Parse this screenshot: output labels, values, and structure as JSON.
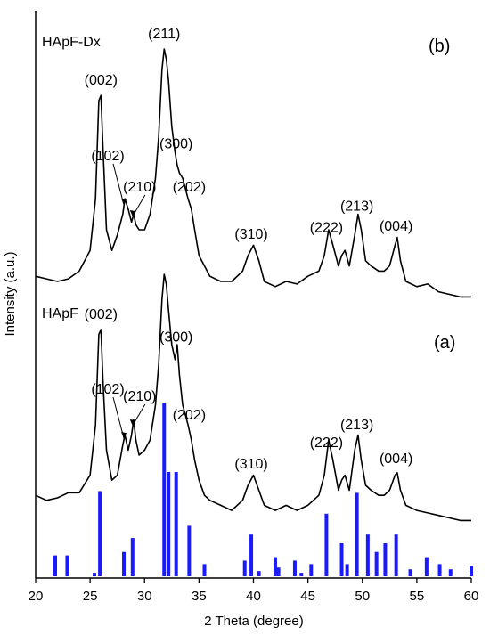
{
  "chart_data": {
    "type": "line",
    "xlabel": "2 Theta (degree)",
    "ylabel": "Intensity (a.u.)",
    "xlim": [
      20,
      60
    ],
    "x_ticks": [
      "20",
      "25",
      "30",
      "35",
      "40",
      "45",
      "50",
      "55",
      "60"
    ],
    "y_ticks_labeled": false,
    "legend": "none",
    "colors": {
      "pattern_line": "#000000",
      "reference_bars": "#1a1aff"
    },
    "series": [
      {
        "name": "HApF-Dx",
        "panel_label": "(b)",
        "x": [
          20.0,
          21.0,
          22.0,
          23.0,
          24.0,
          25.0,
          25.5,
          25.8,
          26.0,
          26.2,
          26.5,
          27.0,
          27.5,
          28.0,
          28.2,
          28.5,
          28.8,
          29.0,
          29.2,
          29.5,
          30.0,
          30.5,
          31.0,
          31.3,
          31.6,
          31.8,
          32.0,
          32.2,
          32.5,
          32.8,
          33.0,
          33.2,
          33.5,
          34.0,
          34.3,
          34.6,
          35.0,
          35.5,
          36.0,
          37.0,
          38.0,
          39.0,
          39.5,
          40.0,
          40.5,
          41.0,
          42.0,
          43.0,
          44.0,
          45.0,
          46.0,
          46.5,
          46.9,
          47.3,
          47.8,
          48.1,
          48.4,
          48.8,
          49.3,
          49.6,
          49.9,
          50.3,
          50.8,
          51.5,
          52.0,
          52.5,
          53.0,
          53.2,
          53.5,
          54.0,
          55.0,
          56.0,
          57.0,
          58.0,
          59.0,
          60.0
        ],
        "y": [
          0.12,
          0.11,
          0.1,
          0.11,
          0.14,
          0.22,
          0.42,
          0.8,
          0.82,
          0.6,
          0.3,
          0.22,
          0.28,
          0.36,
          0.42,
          0.38,
          0.33,
          0.36,
          0.32,
          0.3,
          0.3,
          0.36,
          0.5,
          0.66,
          0.92,
          1.0,
          0.96,
          0.88,
          0.7,
          0.6,
          0.55,
          0.52,
          0.5,
          0.42,
          0.38,
          0.3,
          0.2,
          0.16,
          0.12,
          0.1,
          0.1,
          0.14,
          0.2,
          0.24,
          0.18,
          0.1,
          0.08,
          0.1,
          0.09,
          0.12,
          0.14,
          0.2,
          0.3,
          0.24,
          0.16,
          0.2,
          0.22,
          0.16,
          0.28,
          0.36,
          0.3,
          0.18,
          0.16,
          0.14,
          0.14,
          0.16,
          0.24,
          0.27,
          0.18,
          0.1,
          0.08,
          0.09,
          0.06,
          0.05,
          0.04,
          0.04
        ]
      },
      {
        "name": "HApF",
        "panel_label": "(a)",
        "x": [
          20.0,
          21.0,
          22.0,
          23.0,
          24.0,
          25.0,
          25.5,
          25.8,
          26.0,
          26.2,
          26.5,
          27.0,
          27.5,
          28.0,
          28.2,
          28.5,
          28.8,
          29.0,
          29.2,
          29.5,
          30.0,
          30.5,
          31.0,
          31.3,
          31.6,
          31.8,
          32.0,
          32.2,
          32.5,
          32.8,
          33.0,
          33.2,
          33.5,
          34.0,
          34.3,
          34.6,
          35.0,
          35.5,
          36.0,
          37.0,
          38.0,
          39.0,
          39.5,
          40.0,
          40.5,
          41.0,
          42.0,
          43.0,
          44.0,
          45.0,
          46.0,
          46.5,
          46.9,
          47.3,
          47.8,
          48.1,
          48.4,
          48.8,
          49.3,
          49.6,
          49.9,
          50.3,
          50.8,
          51.5,
          52.0,
          52.5,
          53.0,
          53.2,
          53.5,
          54.0,
          55.0,
          56.0,
          57.0,
          58.0,
          59.0,
          60.0
        ],
        "y": [
          0.12,
          0.1,
          0.11,
          0.13,
          0.13,
          0.2,
          0.4,
          0.76,
          0.78,
          0.56,
          0.3,
          0.18,
          0.2,
          0.32,
          0.36,
          0.3,
          0.36,
          0.42,
          0.34,
          0.28,
          0.3,
          0.34,
          0.48,
          0.64,
          0.9,
          1.0,
          0.96,
          0.86,
          0.72,
          0.66,
          0.72,
          0.6,
          0.48,
          0.4,
          0.34,
          0.26,
          0.18,
          0.12,
          0.1,
          0.08,
          0.06,
          0.1,
          0.16,
          0.2,
          0.14,
          0.08,
          0.06,
          0.08,
          0.06,
          0.08,
          0.12,
          0.2,
          0.34,
          0.26,
          0.14,
          0.18,
          0.2,
          0.14,
          0.3,
          0.36,
          0.26,
          0.16,
          0.14,
          0.12,
          0.12,
          0.14,
          0.2,
          0.21,
          0.14,
          0.08,
          0.06,
          0.05,
          0.04,
          0.03,
          0.02,
          0.02
        ]
      }
    ],
    "reference_bars": {
      "x": [
        21.8,
        22.9,
        25.4,
        25.9,
        28.1,
        28.9,
        31.8,
        32.2,
        32.9,
        34.1,
        35.5,
        39.2,
        39.8,
        40.5,
        42.0,
        42.3,
        43.8,
        44.4,
        45.3,
        46.7,
        48.1,
        48.6,
        49.5,
        50.5,
        51.3,
        52.1,
        53.1,
        54.4,
        55.9,
        57.1,
        58.1,
        60.0
      ],
      "y": [
        0.12,
        0.12,
        0.02,
        0.49,
        0.14,
        0.22,
        1.0,
        0.6,
        0.6,
        0.29,
        0.07,
        0.09,
        0.24,
        0.03,
        0.11,
        0.05,
        0.09,
        0.02,
        0.07,
        0.36,
        0.19,
        0.07,
        0.48,
        0.24,
        0.14,
        0.19,
        0.24,
        0.04,
        0.11,
        0.07,
        0.04,
        0.06
      ]
    },
    "annotations": [
      {
        "series": "HApF-Dx",
        "text": "(002)",
        "x": 26.0
      },
      {
        "series": "HApF-Dx",
        "text": "(102)",
        "x": 28.1,
        "arrow": true
      },
      {
        "series": "HApF-Dx",
        "text": "(210)",
        "x": 28.9,
        "arrow": true
      },
      {
        "series": "HApF-Dx",
        "text": "(211)",
        "x": 31.8
      },
      {
        "series": "HApF-Dx",
        "text": "(300)",
        "x": 32.9
      },
      {
        "series": "HApF-Dx",
        "text": "(202)",
        "x": 34.1
      },
      {
        "series": "HApF-Dx",
        "text": "(310)",
        "x": 39.8
      },
      {
        "series": "HApF-Dx",
        "text": "(222)",
        "x": 46.7
      },
      {
        "series": "HApF-Dx",
        "text": "(213)",
        "x": 49.5
      },
      {
        "series": "HApF-Dx",
        "text": "(004)",
        "x": 53.1
      },
      {
        "series": "HApF",
        "text": "(002)",
        "x": 26.0
      },
      {
        "series": "HApF",
        "text": "(102)",
        "x": 28.1,
        "arrow": true
      },
      {
        "series": "HApF",
        "text": "(210)",
        "x": 28.9,
        "arrow": true
      },
      {
        "series": "HApF",
        "text": "(300)",
        "x": 32.9
      },
      {
        "series": "HApF",
        "text": "(202)",
        "x": 34.1
      },
      {
        "series": "HApF",
        "text": "(310)",
        "x": 39.8
      },
      {
        "series": "HApF",
        "text": "(222)",
        "x": 46.7
      },
      {
        "series": "HApF",
        "text": "(213)",
        "x": 49.5
      },
      {
        "series": "HApF",
        "text": "(004)",
        "x": 53.1
      }
    ]
  }
}
